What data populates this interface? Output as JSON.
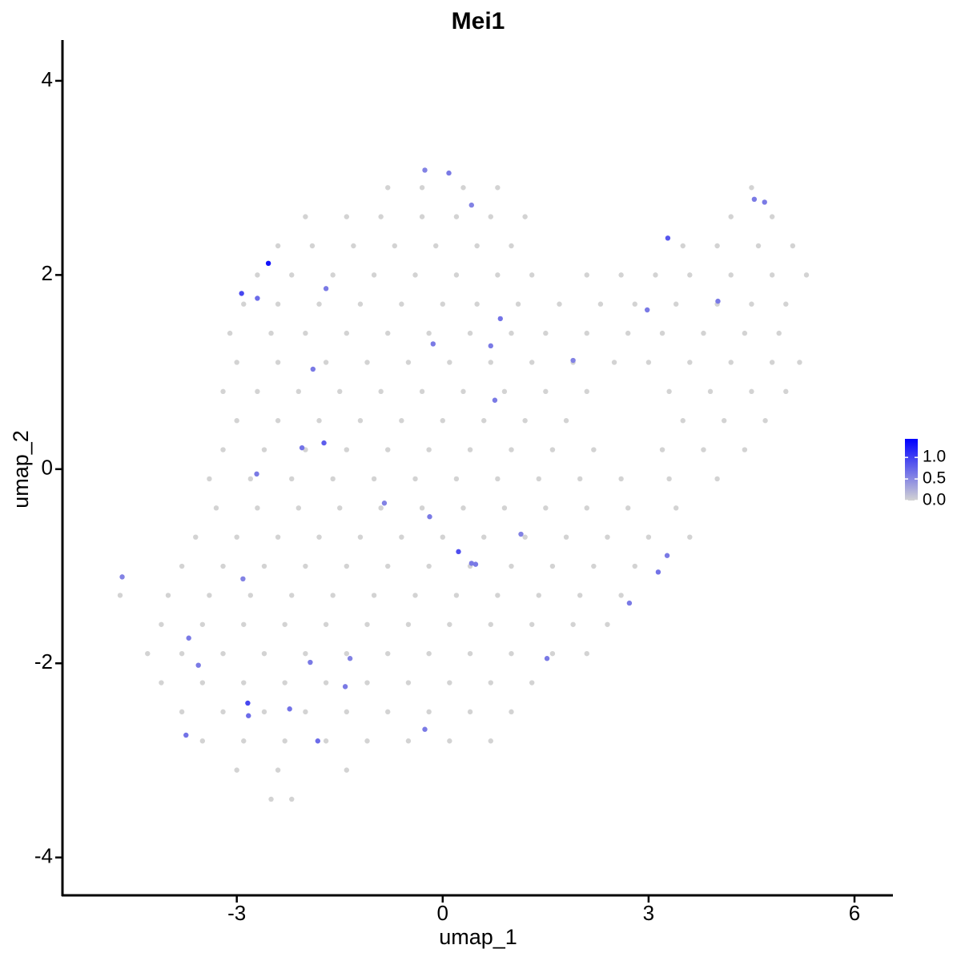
{
  "chart_data": {
    "type": "scatter",
    "title": "Mei1",
    "x_label": "umap_1",
    "y_label": "umap_2",
    "xlim": [
      -5.54,
      6.56
    ],
    "ylim": [
      -4.39,
      4.42
    ],
    "xticks": [
      -3,
      0,
      3,
      6
    ],
    "yticks": [
      -4,
      -2,
      0,
      2,
      4
    ],
    "color_low": "#d3d3d3",
    "color_high": "#0000ff",
    "color_range": [
      0,
      1.43
    ],
    "color_ticks": [
      {
        "value": 0,
        "label": "0.0"
      },
      {
        "value": 0.5,
        "label": "0.5"
      },
      {
        "value": 1,
        "label": "1.0"
      }
    ],
    "x": [
      -0.8,
      -0.3,
      0.3,
      0.8,
      4.5,
      -2.0,
      -1.4,
      -0.9,
      -0.3,
      0.2,
      0.7,
      1.2,
      4.2,
      4.8,
      -2.4,
      -1.9,
      -1.3,
      -0.7,
      -0.1,
      0.5,
      1.0,
      3.5,
      4.0,
      4.6,
      5.1,
      -2.7,
      -2.2,
      -1.6,
      -1.0,
      -0.4,
      0.2,
      0.8,
      1.3,
      2.1,
      2.6,
      3.1,
      3.6,
      4.2,
      4.8,
      5.3,
      -2.9,
      -2.4,
      -1.8,
      -1.2,
      -0.6,
      0.0,
      0.5,
      1.1,
      1.7,
      2.3,
      2.8,
      3.4,
      4.0,
      4.5,
      5.0,
      -3.1,
      -2.5,
      -2.0,
      -1.4,
      -0.8,
      -0.2,
      0.4,
      1.0,
      1.5,
      2.1,
      2.7,
      3.2,
      3.8,
      4.4,
      4.9,
      -3.0,
      -2.4,
      -1.7,
      -1.1,
      -0.5,
      0.1,
      0.7,
      1.3,
      1.9,
      2.5,
      3.0,
      3.6,
      4.2,
      4.8,
      5.2,
      -3.2,
      -2.7,
      -2.1,
      -1.5,
      -0.9,
      -0.3,
      0.3,
      0.9,
      1.5,
      2.1,
      3.3,
      3.9,
      4.5,
      5.0,
      -3.0,
      -2.4,
      -1.8,
      -1.2,
      -0.6,
      0.0,
      0.6,
      1.2,
      1.8,
      3.5,
      4.1,
      4.7,
      -3.2,
      -2.6,
      -2.0,
      -1.4,
      -0.8,
      -0.2,
      0.4,
      1.0,
      1.6,
      2.2,
      3.2,
      3.8,
      4.4,
      -3.4,
      -2.8,
      -2.2,
      -1.6,
      -1.0,
      -0.4,
      0.2,
      0.8,
      1.4,
      2.0,
      2.6,
      3.3,
      4.0,
      -3.3,
      -2.7,
      -2.1,
      -1.5,
      -0.9,
      -0.3,
      0.3,
      0.9,
      1.5,
      2.1,
      2.7,
      3.4,
      -3.6,
      -3.0,
      -2.4,
      -1.8,
      -1.2,
      -0.6,
      0.0,
      0.6,
      1.2,
      1.8,
      2.4,
      3.0,
      3.6,
      -3.8,
      -3.2,
      -2.6,
      -2.0,
      -1.4,
      -0.8,
      -0.2,
      0.4,
      1.0,
      1.6,
      2.2,
      2.8,
      -4.7,
      -4.0,
      -3.4,
      -2.8,
      -2.2,
      -1.6,
      -1.0,
      -0.4,
      0.2,
      0.8,
      1.4,
      2.0,
      2.6,
      -4.1,
      -3.5,
      -2.9,
      -2.3,
      -1.7,
      -1.1,
      -0.5,
      0.1,
      0.7,
      1.3,
      1.9,
      2.4,
      -4.3,
      -3.8,
      -3.2,
      -2.6,
      -2.0,
      -1.4,
      -0.8,
      -0.2,
      0.4,
      1.0,
      1.6,
      2.1,
      -4.1,
      -3.5,
      -2.9,
      -2.3,
      -1.7,
      -1.1,
      -0.5,
      0.1,
      0.7,
      1.3,
      -3.8,
      -3.2,
      -2.6,
      -2.0,
      -1.4,
      -0.8,
      -0.2,
      0.4,
      1.0,
      -3.5,
      -2.9,
      -2.3,
      -1.7,
      -1.1,
      -0.5,
      0.1,
      0.7,
      -3.0,
      -2.4,
      -1.4,
      -2.5,
      -2.2,
      -0.26,
      0.09,
      0.42,
      4.54,
      4.69,
      3.28,
      -2.54,
      -2.93,
      -2.7,
      -1.7,
      0.84,
      2.98,
      4.01,
      -0.14,
      0.7,
      1.9,
      -1.89,
      0.76,
      -2.05,
      -1.73,
      -2.71,
      -0.85,
      -0.19,
      1.14,
      0.23,
      0.42,
      0.48,
      3.27,
      3.14,
      2.72,
      -4.67,
      -2.91,
      -3.7,
      -3.56,
      -1.93,
      -1.35,
      1.52,
      -1.42,
      -2.84,
      -2.83,
      -2.23,
      -1.82,
      -3.74,
      -0.26
    ],
    "y": [
      2.9,
      2.9,
      2.9,
      2.9,
      2.9,
      2.6,
      2.6,
      2.6,
      2.6,
      2.6,
      2.6,
      2.6,
      2.6,
      2.6,
      2.3,
      2.3,
      2.3,
      2.3,
      2.3,
      2.3,
      2.3,
      2.3,
      2.3,
      2.3,
      2.3,
      2.0,
      2.0,
      2.0,
      2.0,
      2.0,
      2.0,
      2.0,
      2.0,
      2.0,
      2.0,
      2.0,
      2.0,
      2.0,
      2.0,
      2.0,
      1.7,
      1.7,
      1.7,
      1.7,
      1.7,
      1.7,
      1.7,
      1.7,
      1.7,
      1.7,
      1.7,
      1.7,
      1.7,
      1.7,
      1.7,
      1.4,
      1.4,
      1.4,
      1.4,
      1.4,
      1.4,
      1.4,
      1.4,
      1.4,
      1.4,
      1.4,
      1.4,
      1.4,
      1.4,
      1.4,
      1.1,
      1.1,
      1.1,
      1.1,
      1.1,
      1.1,
      1.1,
      1.1,
      1.1,
      1.1,
      1.1,
      1.1,
      1.1,
      1.1,
      1.1,
      0.8,
      0.8,
      0.8,
      0.8,
      0.8,
      0.8,
      0.8,
      0.8,
      0.8,
      0.8,
      0.8,
      0.8,
      0.8,
      0.8,
      0.5,
      0.5,
      0.5,
      0.5,
      0.5,
      0.5,
      0.5,
      0.5,
      0.5,
      0.5,
      0.5,
      0.5,
      0.2,
      0.2,
      0.2,
      0.2,
      0.2,
      0.2,
      0.2,
      0.2,
      0.2,
      0.2,
      0.2,
      0.2,
      0.2,
      -0.1,
      -0.1,
      -0.1,
      -0.1,
      -0.1,
      -0.1,
      -0.1,
      -0.1,
      -0.1,
      -0.1,
      -0.1,
      -0.1,
      -0.1,
      -0.4,
      -0.4,
      -0.4,
      -0.4,
      -0.4,
      -0.4,
      -0.4,
      -0.4,
      -0.4,
      -0.4,
      -0.4,
      -0.4,
      -0.7,
      -0.7,
      -0.7,
      -0.7,
      -0.7,
      -0.7,
      -0.7,
      -0.7,
      -0.7,
      -0.7,
      -0.7,
      -0.7,
      -0.7,
      -1.0,
      -1.0,
      -1.0,
      -1.0,
      -1.0,
      -1.0,
      -1.0,
      -1.0,
      -1.0,
      -1.0,
      -1.0,
      -1.0,
      -1.3,
      -1.3,
      -1.3,
      -1.3,
      -1.3,
      -1.3,
      -1.3,
      -1.3,
      -1.3,
      -1.3,
      -1.3,
      -1.3,
      -1.3,
      -1.6,
      -1.6,
      -1.6,
      -1.6,
      -1.6,
      -1.6,
      -1.6,
      -1.6,
      -1.6,
      -1.6,
      -1.6,
      -1.6,
      -1.9,
      -1.9,
      -1.9,
      -1.9,
      -1.9,
      -1.9,
      -1.9,
      -1.9,
      -1.9,
      -1.9,
      -1.9,
      -1.9,
      -2.2,
      -2.2,
      -2.2,
      -2.2,
      -2.2,
      -2.2,
      -2.2,
      -2.2,
      -2.2,
      -2.2,
      -2.5,
      -2.5,
      -2.5,
      -2.5,
      -2.5,
      -2.5,
      -2.5,
      -2.5,
      -2.5,
      -2.8,
      -2.8,
      -2.8,
      -2.8,
      -2.8,
      -2.8,
      -2.8,
      -2.8,
      -3.1,
      -3.1,
      -3.1,
      -3.4,
      -3.4,
      3.08,
      3.05,
      2.72,
      2.78,
      2.75,
      2.38,
      2.12,
      1.81,
      1.76,
      1.86,
      1.55,
      1.64,
      1.73,
      1.29,
      1.27,
      1.12,
      1.03,
      0.71,
      0.22,
      0.27,
      -0.05,
      -0.35,
      -0.49,
      -0.67,
      -0.85,
      -0.97,
      -0.98,
      -0.89,
      -1.06,
      -1.38,
      -1.11,
      -1.13,
      -1.74,
      -2.02,
      -1.99,
      -1.95,
      -1.95,
      -2.24,
      -2.41,
      -2.54,
      -2.47,
      -2.8,
      -2.74,
      -2.68
    ],
    "values": [
      0,
      0,
      0,
      0,
      0,
      0,
      0,
      0,
      0,
      0,
      0,
      0,
      0,
      0,
      0,
      0,
      0,
      0,
      0,
      0,
      0,
      0,
      0,
      0,
      0,
      0,
      0,
      0,
      0,
      0,
      0,
      0,
      0,
      0,
      0,
      0,
      0,
      0,
      0,
      0,
      0,
      0,
      0,
      0,
      0,
      0,
      0,
      0,
      0,
      0,
      0,
      0,
      0,
      0,
      0,
      0,
      0,
      0,
      0,
      0,
      0,
      0,
      0,
      0,
      0,
      0,
      0,
      0,
      0,
      0,
      0,
      0,
      0,
      0,
      0,
      0,
      0,
      0,
      0,
      0,
      0,
      0,
      0,
      0,
      0,
      0,
      0,
      0,
      0,
      0,
      0,
      0,
      0,
      0,
      0,
      0,
      0,
      0,
      0,
      0,
      0,
      0,
      0,
      0,
      0,
      0,
      0,
      0,
      0,
      0,
      0,
      0,
      0,
      0,
      0,
      0,
      0,
      0,
      0,
      0,
      0,
      0,
      0,
      0,
      0,
      0,
      0,
      0,
      0,
      0,
      0,
      0,
      0,
      0,
      0,
      0,
      0,
      0,
      0,
      0,
      0,
      0,
      0,
      0,
      0,
      0,
      0,
      0,
      0,
      0,
      0,
      0,
      0,
      0,
      0,
      0,
      0,
      0,
      0,
      0,
      0,
      0,
      0,
      0,
      0,
      0,
      0,
      0,
      0,
      0,
      0,
      0,
      0,
      0,
      0,
      0,
      0,
      0,
      0,
      0,
      0,
      0,
      0,
      0,
      0,
      0,
      0,
      0,
      0,
      0,
      0,
      0,
      0,
      0,
      0,
      0,
      0,
      0,
      0,
      0,
      0,
      0,
      0,
      0,
      0,
      0,
      0,
      0,
      0,
      0,
      0,
      0,
      0,
      0,
      0,
      0,
      0,
      0,
      0,
      0,
      0,
      0,
      0,
      0,
      0,
      0,
      0,
      0,
      0,
      0,
      0,
      0,
      0,
      0,
      0,
      0,
      0,
      0,
      0,
      0,
      0,
      0,
      0,
      0.55,
      0.6,
      0.55,
      0.6,
      0.6,
      0.85,
      1.3,
      0.95,
      0.7,
      0.6,
      0.65,
      0.6,
      0.6,
      0.6,
      0.6,
      0.55,
      0.6,
      0.6,
      0.65,
      0.8,
      0.6,
      0.55,
      0.6,
      0.55,
      0.9,
      0.6,
      0.6,
      0.6,
      0.65,
      0.6,
      0.55,
      0.55,
      0.6,
      0.6,
      0.6,
      0.55,
      0.6,
      0.6,
      0.95,
      0.7,
      0.65,
      0.7,
      0.65,
      0.6
    ]
  }
}
